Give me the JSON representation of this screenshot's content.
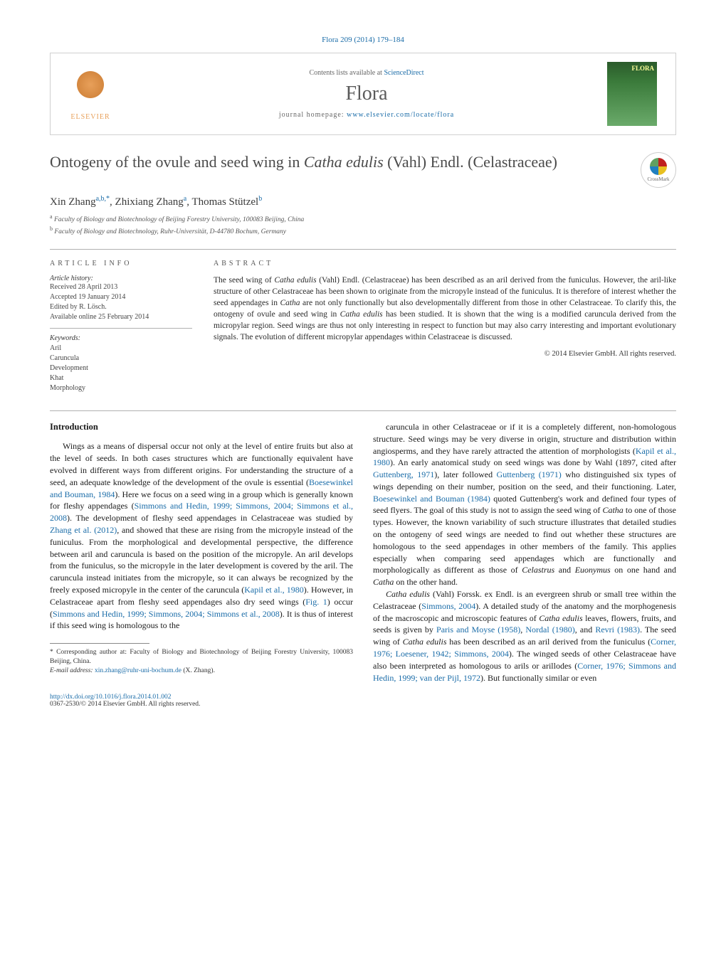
{
  "journal_ref": "Flora 209 (2014) 179–184",
  "header": {
    "contents_prefix": "Contents lists available at ",
    "contents_link": "ScienceDirect",
    "journal_name": "Flora",
    "homepage_prefix": "journal homepage: ",
    "homepage_link": "www.elsevier.com/locate/flora",
    "elsevier": "ELSEVIER",
    "cover_label": "FLORA"
  },
  "title_plain_pre": "Ontogeny of the ovule and seed wing in ",
  "title_italic": "Catha edulis",
  "title_plain_post": " (Vahl) Endl. (Celastraceae)",
  "crossmark": "CrossMark",
  "authors": {
    "a1_name": "Xin Zhang",
    "a1_sup": "a,b,*",
    "a2_name": "Zhixiang Zhang",
    "a2_sup": "a",
    "a3_name": "Thomas Stützel",
    "a3_sup": "b"
  },
  "affiliations": {
    "a_sup": "a",
    "a_text": " Faculty of Biology and Biotechnology of Beijing Forestry University, 100083 Beijing, China",
    "b_sup": "b",
    "b_text": " Faculty of Biology and Biotechnology, Ruhr-Universität, D-44780 Bochum, Germany"
  },
  "article_info": {
    "heading": "article info",
    "history_label": "Article history:",
    "received": "Received 28 April 2013",
    "accepted": "Accepted 19 January 2014",
    "edited": "Edited by R. Lösch.",
    "online": "Available online 25 February 2014",
    "keywords_label": "Keywords:",
    "keywords": [
      "Aril",
      "Caruncula",
      "Development",
      "Khat",
      "Morphology"
    ]
  },
  "abstract": {
    "heading": "abstract",
    "text_parts": [
      {
        "t": "The seed wing of "
      },
      {
        "t": "Catha edulis",
        "i": true
      },
      {
        "t": " (Vahl) Endl. (Celastraceae) has been described as an aril derived from the funiculus. However, the aril-like structure of other Celastraceae has been shown to originate from the micropyle instead of the funiculus. It is therefore of interest whether the seed appendages in "
      },
      {
        "t": "Catha",
        "i": true
      },
      {
        "t": " are not only functionally but also developmentally different from those in other Celastraceae. To clarify this, the ontogeny of ovule and seed wing in "
      },
      {
        "t": "Catha edulis",
        "i": true
      },
      {
        "t": " has been studied. It is shown that the wing is a modified caruncula derived from the micropylar region. Seed wings are thus not only interesting in respect to function but may also carry interesting and important evolutionary signals. The evolution of different micropylar appendages within Celastraceae is discussed."
      }
    ],
    "copyright": "© 2014 Elsevier GmbH. All rights reserved."
  },
  "body": {
    "intro_heading": "Introduction",
    "p1_parts": [
      {
        "t": "Wings as a means of dispersal occur not only at the level of entire fruits but also at the level of seeds. In both cases structures which are functionally equivalent have evolved in different ways from different origins. For understanding the structure of a seed, an adequate knowledge of the development of the ovule is essential ("
      },
      {
        "t": "Boesewinkel and Bouman, 1984",
        "l": true
      },
      {
        "t": "). Here we focus on a seed wing in a group which is generally known for fleshy appendages ("
      },
      {
        "t": "Simmons and Hedin, 1999; Simmons, 2004; Simmons et al., 2008",
        "l": true
      },
      {
        "t": "). The development of fleshy seed appendages in Celastraceae was studied by "
      },
      {
        "t": "Zhang et al. (2012)",
        "l": true
      },
      {
        "t": ", and showed that these are rising from the micropyle instead of the funiculus. From the morphological and developmental perspective, the difference between aril and caruncula is based on the position of the micropyle. An aril develops from the funiculus, so the micropyle in the later development is covered by the aril. The caruncula instead initiates from the micropyle, so it can always be recognized by the freely exposed micropyle in the center of the caruncula ("
      },
      {
        "t": "Kapil et al., 1980",
        "l": true
      },
      {
        "t": "). However, in Celastraceae apart from fleshy seed appendages also dry seed wings ("
      },
      {
        "t": "Fig. 1",
        "l": true
      },
      {
        "t": ") occur ("
      },
      {
        "t": "Simmons and Hedin, 1999; Simmons, 2004; Simmons et al., 2008",
        "l": true
      },
      {
        "t": "). It is thus of interest if this seed wing is homologous to the "
      }
    ],
    "p2_parts": [
      {
        "t": "caruncula in other Celastraceae or if it is a completely different, non-homologous structure. Seed wings may be very diverse in origin, structure and distribution within angiosperms, and they have rarely attracted the attention of morphologists ("
      },
      {
        "t": "Kapil et al., 1980",
        "l": true
      },
      {
        "t": "). An early anatomical study on seed wings was done by Wahl (1897, cited after "
      },
      {
        "t": "Guttenberg, 1971",
        "l": true
      },
      {
        "t": "), later followed "
      },
      {
        "t": "Guttenberg (1971)",
        "l": true
      },
      {
        "t": " who distinguished six types of wings depending on their number, position on the seed, and their functioning. Later, "
      },
      {
        "t": "Boesewinkel and Bouman (1984)",
        "l": true
      },
      {
        "t": " quoted Guttenberg's work and defined four types of seed flyers. The goal of this study is not to assign the seed wing of "
      },
      {
        "t": "Catha",
        "i": true
      },
      {
        "t": " to one of those types. However, the known variability of such structure illustrates that detailed studies on the ontogeny of seed wings are needed to find out whether these structures are homologous to the seed appendages in other members of the family. This applies especially when comparing seed appendages which are functionally and morphologically as different as those of "
      },
      {
        "t": "Celastrus",
        "i": true
      },
      {
        "t": " and "
      },
      {
        "t": "Euonymus",
        "i": true
      },
      {
        "t": " on one hand and "
      },
      {
        "t": "Catha",
        "i": true
      },
      {
        "t": " on the other hand."
      }
    ],
    "p3_parts": [
      {
        "t": "Catha edulis",
        "i": true
      },
      {
        "t": " (Vahl) Forssk. ex Endl. is an evergreen shrub or small tree within the Celastraceae ("
      },
      {
        "t": "Simmons, 2004",
        "l": true
      },
      {
        "t": "). A detailed study of the anatomy and the morphogenesis of the macroscopic and microscopic features of "
      },
      {
        "t": "Catha edulis",
        "i": true
      },
      {
        "t": " leaves, flowers, fruits, and seeds is given by "
      },
      {
        "t": "Paris and Moyse (1958)",
        "l": true
      },
      {
        "t": ", "
      },
      {
        "t": "Nordal (1980)",
        "l": true
      },
      {
        "t": ", and "
      },
      {
        "t": "Revri (1983)",
        "l": true
      },
      {
        "t": ". The seed wing of "
      },
      {
        "t": "Catha edulis",
        "i": true
      },
      {
        "t": " has been described as an aril derived from the funiculus ("
      },
      {
        "t": "Corner, 1976; Loesener, 1942; Simmons, 2004",
        "l": true
      },
      {
        "t": "). The winged seeds of other Celastraceae have also been interpreted as homologous to arils or arillodes ("
      },
      {
        "t": "Corner, 1976; Simmons and Hedin, 1999; van der Pijl, 1972",
        "l": true
      },
      {
        "t": "). But functionally similar or even "
      }
    ]
  },
  "footnotes": {
    "corr_prefix": "* Corresponding author at: Faculty of Biology and Biotechnology of Beijing Forestry University, 100083 Beijing, China.",
    "email_label": "E-mail address: ",
    "email": "xin.zhang@ruhr-uni-bochum.de",
    "email_suffix": " (X. Zhang)."
  },
  "footer": {
    "doi": "http://dx.doi.org/10.1016/j.flora.2014.01.002",
    "issn_line": "0367-2530/© 2014 Elsevier GmbH. All rights reserved."
  },
  "colors": {
    "link": "#1a6ca8",
    "text": "#1a1a1a",
    "heading_gray": "#4a4a4a",
    "border": "#b0b0b0"
  },
  "typography": {
    "body_fontsize": 12,
    "title_fontsize": 22,
    "journal_name_fontsize": 28,
    "abstract_fontsize": 11.5,
    "footnote_fontsize": 9.5
  }
}
